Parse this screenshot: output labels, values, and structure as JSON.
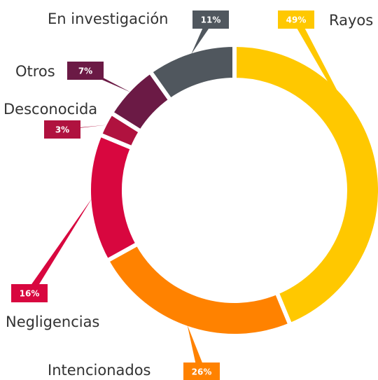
{
  "chart_data": {
    "type": "donut",
    "categories": [
      "Rayos",
      "Intencionados",
      "Negligencias",
      "Desconocida",
      "Otros",
      "En investigación"
    ],
    "values": [
      49,
      26,
      16,
      3,
      7,
      11
    ],
    "value_labels": [
      "49%",
      "26%",
      "16%",
      "3%",
      "7%",
      "11%"
    ],
    "colors": [
      "#ffc800",
      "#ff8200",
      "#d8073f",
      "#b0123f",
      "#6b1a45",
      "#50575e"
    ]
  }
}
